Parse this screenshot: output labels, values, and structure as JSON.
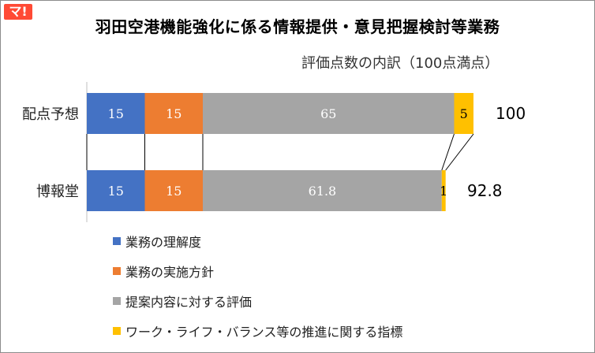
{
  "logo": {
    "text": "マ!"
  },
  "chart_data": {
    "type": "bar",
    "orientation": "horizontal",
    "stacked": true,
    "title": "羽田空港機能強化に係る情報提供・意見把握検討等業務",
    "subtitle": "評価点数の内訳（100点満点）",
    "categories": [
      "配点予想",
      "博報堂"
    ],
    "series": [
      {
        "name": "業務の理解度",
        "color": "#4472c4",
        "values": [
          15,
          15
        ],
        "labels": [
          "15",
          "15"
        ]
      },
      {
        "name": "業務の実施方針",
        "color": "#ed7d31",
        "values": [
          15,
          15
        ],
        "labels": [
          "15",
          "15"
        ]
      },
      {
        "name": "提案内容に対する評価",
        "color": "#a5a5a5",
        "values": [
          65,
          61.8
        ],
        "labels": [
          "65",
          "61.8"
        ]
      },
      {
        "name": "ワーク・ライフ・バランス等の推進に関する指標",
        "color": "#ffc000",
        "values": [
          5,
          1
        ],
        "labels": [
          "5",
          "1"
        ]
      }
    ],
    "totals": [
      "100",
      "92.8"
    ],
    "xlim": [
      0,
      100
    ],
    "grid": false,
    "legend": "bottom-left"
  }
}
